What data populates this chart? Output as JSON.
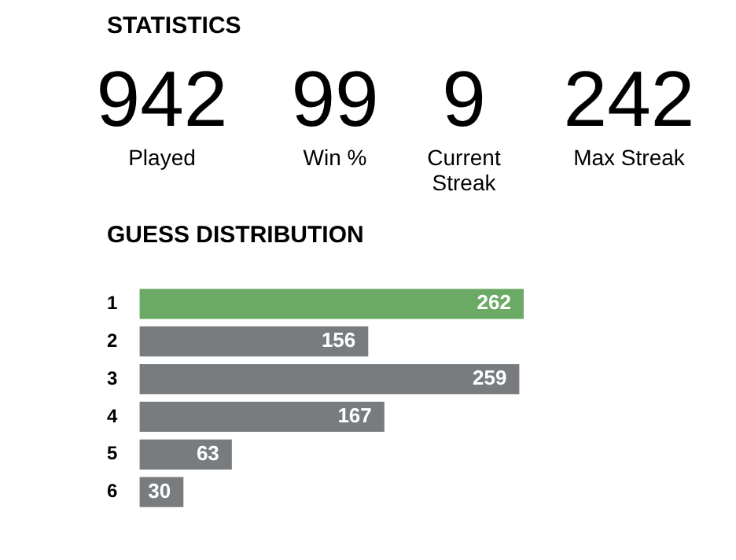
{
  "chart_data": [
    {
      "type": "other",
      "title": "STATISTICS",
      "annotations": [
        "942",
        "Played",
        "99",
        "Win %",
        "9",
        "Current Streak",
        "242",
        "Max Streak"
      ]
    },
    {
      "type": "bar",
      "title": "GUESS DISTRIBUTION",
      "orientation": "horizontal",
      "categories": [
        "1",
        "2",
        "3",
        "4",
        "5",
        "6"
      ],
      "values": [
        262,
        156,
        259,
        167,
        63,
        30
      ],
      "colors": [
        "#6aaa64",
        "#787c7e",
        "#787c7e",
        "#787c7e",
        "#787c7e",
        "#787c7e"
      ],
      "data_labels": true,
      "grid": false,
      "legend": false,
      "tick_labels": "y"
    }
  ]
}
